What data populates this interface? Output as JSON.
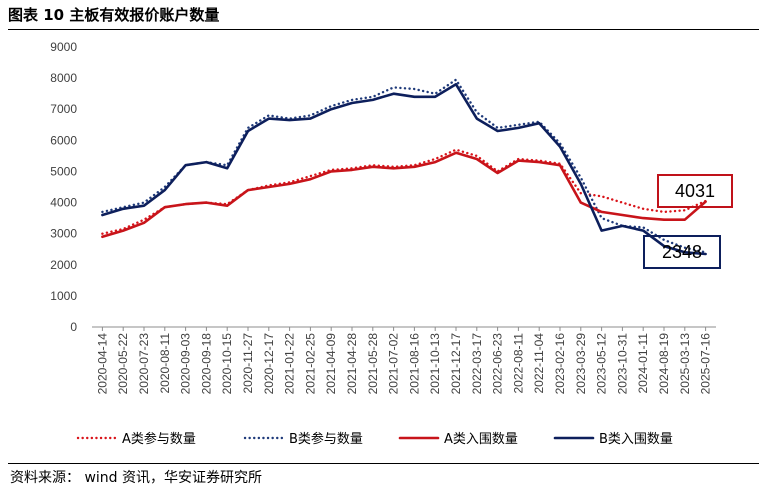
{
  "figure": {
    "title": "图表 10 主板有效报价账户数量",
    "source": "资料来源： wind 资讯，华安证券研究所"
  },
  "chart_data": {
    "type": "line",
    "title": "",
    "xlabel": "",
    "ylabel": "",
    "ylim": [
      0,
      9000
    ],
    "yticks": [
      "0",
      "1000",
      "2000",
      "3000",
      "4000",
      "5000",
      "6000",
      "7000",
      "8000",
      "9000"
    ],
    "xticks": [
      "2020-04-14",
      "2020-05-22",
      "2020-07-23",
      "2020-08-11",
      "2020-09-03",
      "2020-09-18",
      "2020-10-15",
      "2020-11-27",
      "2020-12-17",
      "2021-01-22",
      "2021-02-25",
      "2021-04-09",
      "2021-04-28",
      "2021-05-28",
      "2021-07-02",
      "2021-08-16",
      "2021-10-13",
      "2021-12-17",
      "2022-03-17",
      "2022-06-23",
      "2022-08-11",
      "2022-11-04",
      "2023-02-16",
      "2023-03-29",
      "2023-05-12",
      "2023-10-31",
      "2024-01-11",
      "2024-08-19",
      "2025-03-13",
      "2025-07-16"
    ],
    "x": [
      0,
      1,
      2,
      3,
      4,
      5,
      6,
      7,
      8,
      9,
      10,
      11,
      12,
      13,
      14,
      15,
      16,
      17,
      18,
      19,
      20,
      21,
      22,
      23,
      24,
      25,
      26,
      27,
      28,
      29
    ],
    "grid": false,
    "legend_position": "bottom",
    "series": [
      {
        "name": "A类参与数量",
        "color": "#d9141a",
        "style": "dotted",
        "values": [
          3000,
          3150,
          3450,
          3850,
          3950,
          4000,
          3950,
          4400,
          4550,
          4650,
          4850,
          5050,
          5100,
          5200,
          5150,
          5200,
          5400,
          5700,
          5500,
          5000,
          5400,
          5350,
          5250,
          4300,
          4200,
          4000,
          3800,
          3700,
          3750,
          4050
        ]
      },
      {
        "name": "B类参与数量",
        "color": "#1f3a7a",
        "style": "dotted",
        "values": [
          3700,
          3850,
          4000,
          4500,
          5200,
          5300,
          5200,
          6400,
          6800,
          6700,
          6800,
          7100,
          7300,
          7400,
          7700,
          7650,
          7500,
          7950,
          6900,
          6400,
          6500,
          6600,
          5900,
          4800,
          3500,
          3250,
          3200,
          2800,
          2550,
          2400
        ]
      },
      {
        "name": "A类入围数量",
        "color": "#c8141a",
        "style": "solid",
        "values": [
          2900,
          3100,
          3350,
          3850,
          3950,
          4000,
          3900,
          4400,
          4500,
          4600,
          4750,
          5000,
          5050,
          5150,
          5100,
          5150,
          5300,
          5600,
          5400,
          4950,
          5350,
          5300,
          5200,
          4000,
          3700,
          3600,
          3500,
          3450,
          3450,
          4031
        ]
      },
      {
        "name": "B类入围数量",
        "color": "#0d1f5c",
        "style": "solid",
        "values": [
          3600,
          3800,
          3900,
          4400,
          5200,
          5300,
          5100,
          6300,
          6700,
          6650,
          6700,
          7000,
          7200,
          7300,
          7500,
          7400,
          7400,
          7800,
          6700,
          6300,
          6400,
          6550,
          5800,
          4600,
          3100,
          3250,
          3100,
          2600,
          2400,
          2348
        ]
      }
    ],
    "annotations": [
      {
        "text": "4031",
        "series": "A类入围数量",
        "color": "#c0121a"
      },
      {
        "text": "2348",
        "series": "B类入围数量",
        "color": "#0d1f5c"
      }
    ]
  }
}
